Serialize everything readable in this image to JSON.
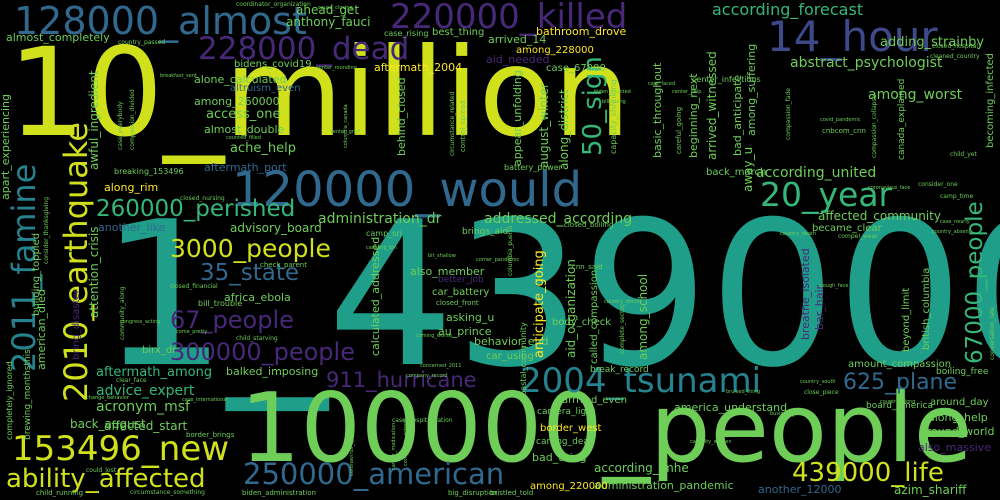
{
  "palette": {
    "background": "#000000",
    "lime": "#d0e11c",
    "yellow": "#fde725",
    "green": "#6ece58",
    "green2": "#35b779",
    "teal": "#1f9e89",
    "teal2": "#26828e",
    "blue": "#31688e",
    "indigo": "#3e4989",
    "purple": "#482878",
    "dark": "#440154"
  },
  "words": {
    "w_10_million": "10_million",
    "w_1_439000": "1_439000",
    "w_100000_people": "100000_people",
    "w_120000_would": "120000_would",
    "w_128000_almost": "128000_almost",
    "w_220000_killed": "220000_killed",
    "w_228000_dead": "228000_dead",
    "w_14_hour": "14_hour",
    "w_2004_tsunami": "2004_tsunami",
    "w_2010_earthquake": "2010_earthquake",
    "w_2011_famine": "2011_famine",
    "w_153496_new": "153496_new",
    "w_ability_affected": "ability_affected",
    "w_250000_american": "250000_american",
    "w_439000_life": "439000_life",
    "w_3000_people": "3000_people",
    "w_260000_perished": "260000_perished",
    "w_20_year": "20_year",
    "w_67000_people": "67000_people",
    "w_50_sign": "50_sign",
    "w_300000_people": "300000_people",
    "w_911_hurricane": "911_hurricane",
    "w_67_people": "67_people",
    "w_35_state": "35_state",
    "w_625_plane": "625_plane",
    "w_according_forecast": "according_forecast",
    "w_abstract_psychologist": "abstract_psychologist",
    "w_adding_strainby": "adding_strainby",
    "w_among_worst": "among_worst",
    "w_according_united": "according_united",
    "w_administration_dr": "administration_dr",
    "w_addressed_according": "addressed_according",
    "w_affected_community": "affected_community",
    "w_acronym_msf": "acronym_msf",
    "w_advice_expert": "advice_expert",
    "w_aftermath_among": "aftermath_among",
    "w_affected_start": "affected_start",
    "w_back_august": "back_august",
    "w_anthony_fauci": "anthony_fauci",
    "w_ahead_get": "ahead_get",
    "w_almost_completely": "almost_completely",
    "w_bathroom_drove": "bathroom_drove",
    "w_arrived_14": "arrived_14",
    "w_aid_needed": "aid_needed",
    "w_case_67000": "case_67000",
    "w_bidens_covid19": "bidens_covid19",
    "w_aftermath_2004": "aftermath_2004",
    "w_alone_calculated": "alone_calculated",
    "w_altruism_even": "altruism_even",
    "w_among_260000": "among_260000",
    "w_access_one": "access_one",
    "w_almost_double": "almost_double",
    "w_ache_help": "ache_help",
    "w_aftermath_port": "aftermath_port",
    "w_among_228000": "among_228000",
    "w_advisory_board": "advisory_board",
    "w_another_like": "another_like",
    "w_along_rim": "along_rim",
    "w_breaking_153496": "breaking_153496",
    "w_also_member": "also_member",
    "w_africa_ebola": "africa_ebola",
    "w_asking_u": "asking_u",
    "w_au_prince": "au_prince",
    "w_behavior_end": "behavior_end",
    "w_body_check": "body_check",
    "w_balked_imposing": "balked_imposing",
    "w_birx_dr": "birx_dr",
    "w_america_understand": "america_understand",
    "w_arrived_even": "arrived_even",
    "w_camera_light": "camera_light",
    "w_border_west": "border_west",
    "w_carting_dead": "carting_dead",
    "w_bad_thing": "bad_thing",
    "w_according_imhe": "according_imhe",
    "w_administration_pandemic": "administration_pandemic",
    "w_among_220000": "among_220000",
    "w_another_12000": "another_12000",
    "w_azim_shariff": "azim_shariff",
    "w_along_help": "along_help",
    "w_around_world": "around_world",
    "w_also_massive": "also_massive",
    "w_around_day": "around_day",
    "w_board_america": "board_america",
    "w_amount_compassion": "amount_compassion",
    "w_back_march": "back_march",
    "w_became_clear": "became_clear",
    "w_car_battery": "car_battery",
    "w_car_using": "car_using",
    "w_break_record": "break_record",
    "w_better_job": "better_job",
    "w_american_died": "american_died",
    "w_apart_experiencing": "apart_experiencing",
    "w_attention_crisis": "attention_crisis",
    "w_awful_ingredient": "awful_ingredient",
    "w_along_district": "along_district",
    "w_august_winter": "august_winter",
    "w_appear_unfolding": "appear_unfolding",
    "w_behind_closed": "behind_closed",
    "w_calculated_addressed": "calculated_addressed",
    "w_anticipate_going": "anticipate_going",
    "w_aid_organization": "aid_organization",
    "w_among_school": "among_school",
    "w_arrived_witnessed": "arrived_witnessed",
    "w_beginning_next": "beginning_next",
    "w_basic_throughout": "basic_throughout",
    "w_bad_anticipate": "bad_anticipate",
    "w_among_suffering": "among_suffering",
    "w_away_u": "away_u",
    "w_beyond_limit": "beyond_limit",
    "w_breathe_isolated": "breathe_isolated",
    "w_bar_hair": "bar_hair",
    "w_british_columbia": "british_columbia",
    "w_building_toppled": "building_toppled",
    "w_bring_disaster": "bring_disaster",
    "w_called_compassion": "called_compassion",
    "w_brings_aid": "brings_aid",
    "w_boiling_free": "boiling_free",
    "w_center_infectious": "center_infectious",
    "w_best_thing": "best_thing",
    "w_case_rising": "case_rising",
    "w_coordinator_organization": "coordinator_organization",
    "w_country_passed": "country_passed",
    "w_camp_sri": "camp_sri",
    "w_check_parent": "check_parent",
    "w_cnn_said": "cnn_said",
    "w_closed_front": "closed_front",
    "w_biden_administration": "biden_administration",
    "w_big_disruption": "big_disruption",
    "w_bristled_told": "bristled_told",
    "w_child_running": "child_running",
    "w_circumstance_something": "circumstance_something",
    "w_closed_nursing": "closed_nursing",
    "w_closed_financial": "closed_financial",
    "w_could_lost": "could_lost",
    "w_case_hospitalization": "case_hospitalization",
    "w_clear_face": "clear_face",
    "w_compel_wear": "compel_wear",
    "w_country_along": "country_along",
    "w_cnbcom_cnn": "cnbcom_cnn",
    "w_consider_one": "consider_one",
    "w_camp_time": "camp_time",
    "w_case_nearly": "case_nearly",
    "w_child_starving": "child_starving",
    "w_becoming_infected": "becoming_infected",
    "w_cleaned_country": "cleaned_country",
    "w_closed_hospital": "closed_hospital",
    "w_covid_pandemic": "covid_pandemic",
    "w_compassion_fade": "compassion_fade",
    "w_canada_explained": "canada_explained",
    "w_child_yet": "child_yet",
    "w_control_spread": "control_spread",
    "w_columbia_puerto": "columbia_puerto",
    "w_change_behavior": "change_behavior",
    "w_brewing_monthsthis": "brewing_monthsthis",
    "w_completely_ignored": "completely_ignored",
    "w_case_everybody": "case_everybody",
    "w_compassion_divided": "compassion_divided",
    "w_center_grief": "center_grief",
    "w_capacity_shrinking": "capacity_shrinking",
    "w_careful_going": "careful_going",
    "w_coastal_community": "coastal_community",
    "w_country_doctor": "country_doctor",
    "w_circumstance_related": "circumstance_related",
    "w_compassion_collapse": "compassion_collapse",
    "w_come_pretty": "come_pretty",
    "w_conversation_late": "conversation_late",
    "w_country_south": "country_south",
    "w_close_piece": "close_piece",
    "w_concerned_2011": "concerned_2011",
    "w_cause_closing": "cause_closing",
    "w_complete_sector": "complete_sector",
    "w_country_absent": "country_absent",
    "w_coronavirus_face": "coronavirus_face",
    "w_center_rounding": "center_rounding",
    "w_columbia_canada": "columbia_canada",
    "w_counted_filled": "counted_filled",
    "w_country_death": "country_death",
    "w_battery_power": "battery_power",
    "w_closed_boiling": "closed_boiling",
    "w_corner_pandemic": "corner_pandemic",
    "w_consider_thanksgiving": "consider_thanksgiving",
    "w_cancer_medication": "cancer_medication",
    "w_case_international": "case_international",
    "w_community_along": "community_along",
    "w_bill_trouble": "bill_trouble",
    "w_border_brings": "border_brings",
    "w_coming_worse": "coming_worse",
    "w_coronavirus_quietly": "coronavirus_quietly",
    "w_company_record": "company_record",
    "w_community_school": "community_school",
    "w_cough_face": "cough_face",
    "w_capacity_worsen": "capacity_worsen",
    "w_business_boiling": "business_boiling",
    "w_bruised_thing": "bruised_thing",
    "w_center_help": "center_help",
    "w_care_faced": "care_faced",
    "w_biden_counted": "biden_counted",
    "w_bill_going": "bill_going",
    "w_carrying_bin": "carrying_bin",
    "w_bit_shallow": "bit_shallow",
    "w_breakfast_sent": "breakfast_sent",
    "w_congress_acting": "congress_acting"
  }
}
